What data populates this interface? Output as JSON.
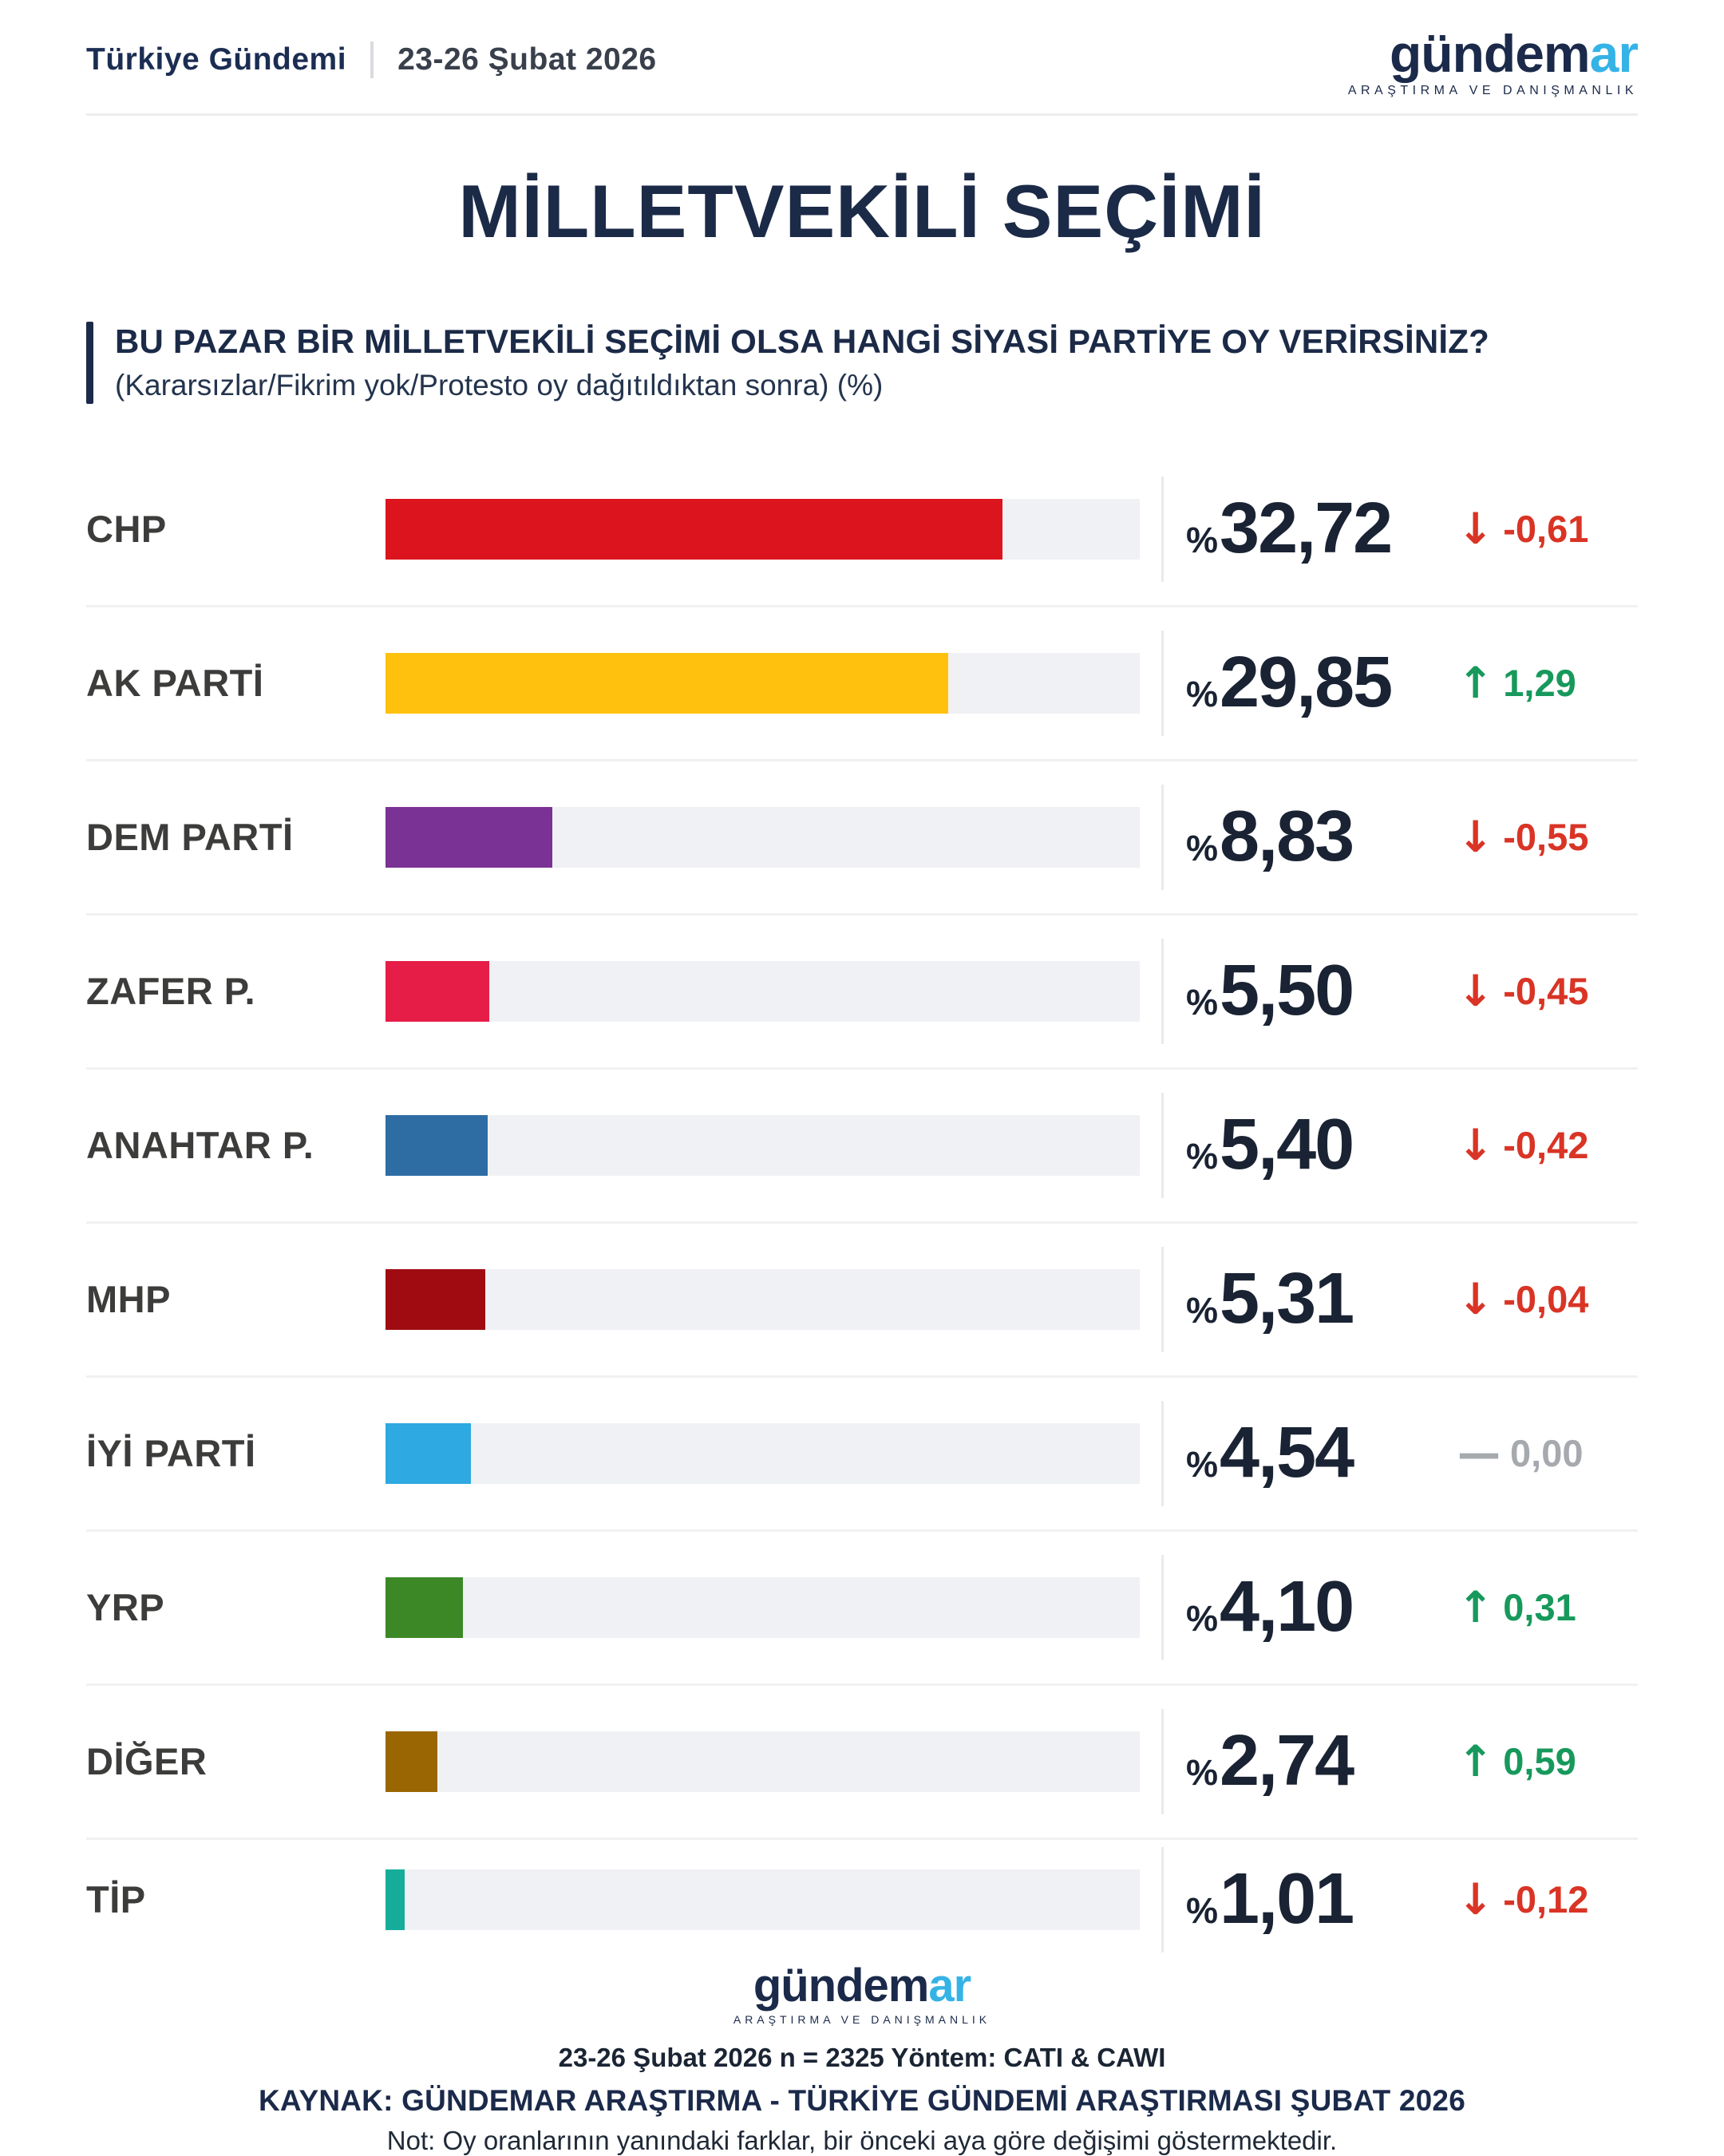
{
  "header": {
    "brand": "Türkiye Gündemi",
    "date": "23-26 Şubat 2026"
  },
  "logo": {
    "text_dark": "gündem",
    "text_blue": "ar",
    "tagline": "ARAŞTIRMA VE DANIŞMANLIK"
  },
  "title": "MİLLETVEKİLİ SEÇİMİ",
  "question": {
    "main": "BU PAZAR BİR MİLLETVEKİLİ SEÇİMİ OLSA HANGİ SİYASİ PARTİYE OY VERİRSİNİZ?",
    "sub": "(Kararsızlar/Fikrim yok/Protesto oy dağıtıldıktan sonra) (%)"
  },
  "chart_data": {
    "type": "bar",
    "orientation": "horizontal",
    "title": "MİLLETVEKİLİ SEÇİMİ",
    "unit": "%",
    "axis_max": 40,
    "legend": "none",
    "categories": [
      "CHP",
      "AK PARTİ",
      "DEM PARTİ",
      "ZAFER P.",
      "ANAHTAR P.",
      "MHP",
      "İYİ PARTİ",
      "YRP",
      "DİĞER",
      "TİP"
    ],
    "values": [
      32.72,
      29.85,
      8.83,
      5.5,
      5.4,
      5.31,
      4.54,
      4.1,
      2.74,
      1.01
    ],
    "changes": [
      -0.61,
      1.29,
      -0.55,
      -0.45,
      -0.42,
      -0.04,
      0.0,
      0.31,
      0.59,
      -0.12
    ],
    "parties": [
      {
        "label": "CHP",
        "value": "32,72",
        "value_num": 32.72,
        "change": "-0,61",
        "change_num": -0.61,
        "direction": "down",
        "arrow": "↓",
        "color": "#DC141E"
      },
      {
        "label": "AK PARTİ",
        "value": "29,85",
        "value_num": 29.85,
        "change": "1,29",
        "change_num": 1.29,
        "direction": "up",
        "arrow": "↑",
        "color": "#FFC10D"
      },
      {
        "label": "DEM PARTİ",
        "value": "8,83",
        "value_num": 8.83,
        "change": "-0,55",
        "change_num": -0.55,
        "direction": "down",
        "arrow": "↓",
        "color": "#7A3295"
      },
      {
        "label": "ZAFER P.",
        "value": "5,50",
        "value_num": 5.5,
        "change": "-0,45",
        "change_num": -0.45,
        "direction": "down",
        "arrow": "↓",
        "color": "#E51D47"
      },
      {
        "label": "ANAHTAR P.",
        "value": "5,40",
        "value_num": 5.4,
        "change": "-0,42",
        "change_num": -0.42,
        "direction": "down",
        "arrow": "↓",
        "color": "#2D6DA4"
      },
      {
        "label": "MHP",
        "value": "5,31",
        "value_num": 5.31,
        "change": "-0,04",
        "change_num": -0.04,
        "direction": "down",
        "arrow": "↓",
        "color": "#9F0B10"
      },
      {
        "label": "İYİ PARTİ",
        "value": "4,54",
        "value_num": 4.54,
        "change": "0,00",
        "change_num": 0.0,
        "direction": "flat",
        "arrow": "—",
        "color": "#2EA9E1"
      },
      {
        "label": "YRP",
        "value": "4,10",
        "value_num": 4.1,
        "change": "0,31",
        "change_num": 0.31,
        "direction": "up",
        "arrow": "↑",
        "color": "#3C8826"
      },
      {
        "label": "DİĞER",
        "value": "2,74",
        "value_num": 2.74,
        "change": "0,59",
        "change_num": 0.59,
        "direction": "up",
        "arrow": "↑",
        "color": "#9A6604"
      },
      {
        "label": "TİP",
        "value": "1,01",
        "value_num": 1.01,
        "change": "-0,12",
        "change_num": -0.12,
        "direction": "down",
        "arrow": "↓",
        "color": "#16AC9A"
      }
    ]
  },
  "colors": {
    "navy": "#1B2A4A",
    "logo_blue": "#36B3E6",
    "track": "#F0F1F4",
    "value_text": "#1A2333",
    "change_down": "#D93425",
    "change_up": "#17995B",
    "change_flat": "#A6A9AE"
  },
  "footer": {
    "methodology": "23-26 Şubat 2026 n = 2325 Yöntem: CATI & CAWI",
    "source": "KAYNAK: GÜNDEMAR ARAŞTIRMA - TÜRKİYE GÜNDEMİ ARAŞTIRMASI ŞUBAT 2026",
    "note": "Not: Oy oranlarının yanındaki farklar, bir önceki aya göre değişimi göstermektedir."
  }
}
